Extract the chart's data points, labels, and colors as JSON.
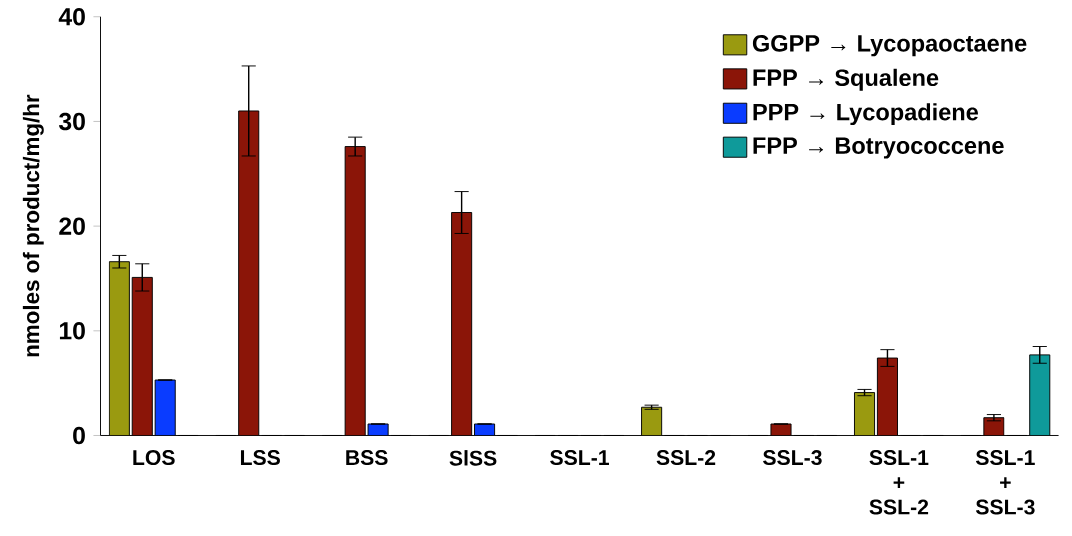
{
  "chart_data": {
    "type": "bar",
    "ylabel": "nmoles of product/mg/hr",
    "categories": [
      "LOS",
      "LSS",
      "BSS",
      "SlSS",
      "SSL-1",
      "SSL-2",
      "SSL-3",
      "SSL-1 + SSL-2",
      "SSL-1 + SSL-3"
    ],
    "series": [
      {
        "name": "GGPP → Lycopaoctaene",
        "color": "#9a9a10",
        "values": [
          16.6,
          0,
          0,
          0,
          0,
          2.7,
          0,
          4.1,
          0
        ],
        "errors": [
          0.6,
          null,
          null,
          null,
          null,
          0.2,
          null,
          0.3,
          null
        ]
      },
      {
        "name": "FPP → Squalene",
        "color": "#8b1508",
        "values": [
          15.1,
          31.0,
          27.6,
          21.3,
          0,
          0,
          1.1,
          7.4,
          1.7
        ],
        "errors": [
          1.3,
          4.3,
          0.9,
          2.0,
          null,
          null,
          null,
          0.8,
          0.3
        ]
      },
      {
        "name": "PPP → Lycopadiene",
        "color": "#0a3cff",
        "values": [
          5.3,
          0,
          1.1,
          1.1,
          0,
          0,
          0,
          0,
          0
        ],
        "errors": [
          null,
          null,
          null,
          null,
          null,
          null,
          null,
          null,
          null
        ]
      },
      {
        "name": "FPP → Botryococcene",
        "color": "#0f9a9a",
        "values": [
          0,
          0,
          0,
          0,
          0,
          0,
          0,
          0,
          7.7
        ],
        "errors": [
          null,
          null,
          null,
          null,
          null,
          null,
          null,
          null,
          0.8
        ]
      }
    ],
    "ylim": [
      0,
      40
    ],
    "yticks": [
      0,
      10,
      20,
      30,
      40
    ],
    "grid": false,
    "legend": "top right"
  }
}
